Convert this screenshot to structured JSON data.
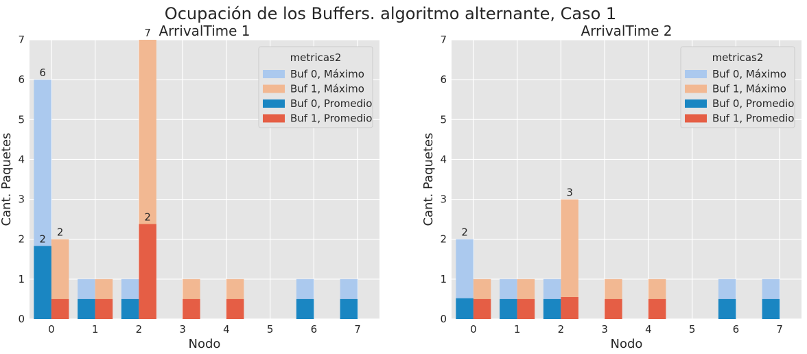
{
  "figure": {
    "title": "Ocupación de los Buffers. algoritmo alternante, Caso 1"
  },
  "colors": {
    "buf0_max": "#abc9ee",
    "buf1_max": "#f2b892",
    "buf0_prom": "#1a86c2",
    "buf1_prom": "#e55e45",
    "plot_bg": "#e5e5e5",
    "grid": "#ffffff"
  },
  "chart_data": [
    {
      "type": "bar",
      "title": "ArrivalTime 1",
      "xlabel": "Nodo",
      "ylabel": "Cant. Paquetes",
      "categories": [
        "0",
        "1",
        "2",
        "3",
        "4",
        "5",
        "6",
        "7"
      ],
      "ylim": [
        0,
        7
      ],
      "yticks": [
        "0",
        "1",
        "2",
        "3",
        "4",
        "5",
        "6",
        "7"
      ],
      "grid": true,
      "legend": {
        "title": "metricas2",
        "placement": "top-right",
        "entries": [
          "Buf 0, Máximo",
          "Buf 1, Máximo",
          "Buf 0, Promedio",
          "Buf 1, Promedio"
        ]
      },
      "series": [
        {
          "name": "Buf 0, Máximo",
          "values": [
            6,
            1,
            1,
            0,
            0,
            0,
            1,
            1
          ]
        },
        {
          "name": "Buf 1, Máximo",
          "values": [
            2,
            1,
            7,
            1,
            1,
            0,
            0,
            0
          ]
        },
        {
          "name": "Buf 0, Promedio",
          "values": [
            1.83,
            0.5,
            0.5,
            0,
            0,
            0,
            0.5,
            0.5
          ]
        },
        {
          "name": "Buf 1, Promedio",
          "values": [
            0.5,
            0.5,
            2.38,
            0.5,
            0.5,
            0,
            0,
            0
          ]
        }
      ],
      "bar_labels": [
        {
          "text": "6",
          "category": 0,
          "slot": 0,
          "value": 6
        },
        {
          "text": "2",
          "category": 0,
          "slot": 0,
          "value": 1.83
        },
        {
          "text": "2",
          "category": 0,
          "slot": 1,
          "value": 2
        },
        {
          "text": "7",
          "category": 2,
          "slot": 1,
          "value": 7
        },
        {
          "text": "2",
          "category": 2,
          "slot": 1,
          "value": 2.38
        }
      ]
    },
    {
      "type": "bar",
      "title": "ArrivalTime 2",
      "xlabel": "Nodo",
      "ylabel": "Cant. Paquetes",
      "categories": [
        "0",
        "1",
        "2",
        "3",
        "4",
        "5",
        "6",
        "7"
      ],
      "ylim": [
        0,
        7
      ],
      "yticks": [
        "0",
        "1",
        "2",
        "3",
        "4",
        "5",
        "6",
        "7"
      ],
      "grid": true,
      "legend": {
        "title": "metricas2",
        "placement": "top-right",
        "entries": [
          "Buf 0, Máximo",
          "Buf 1, Máximo",
          "Buf 0, Promedio",
          "Buf 1, Promedio"
        ]
      },
      "series": [
        {
          "name": "Buf 0, Máximo",
          "values": [
            2,
            1,
            1,
            0,
            0,
            0,
            1,
            1
          ]
        },
        {
          "name": "Buf 1, Máximo",
          "values": [
            1,
            1,
            3,
            1,
            1,
            0,
            0,
            0
          ]
        },
        {
          "name": "Buf 0, Promedio",
          "values": [
            0.52,
            0.5,
            0.5,
            0,
            0,
            0,
            0.5,
            0.5
          ]
        },
        {
          "name": "Buf 1, Promedio",
          "values": [
            0.5,
            0.5,
            0.55,
            0.5,
            0.5,
            0,
            0,
            0
          ]
        }
      ],
      "bar_labels": [
        {
          "text": "2",
          "category": 0,
          "slot": 0,
          "value": 2
        },
        {
          "text": "3",
          "category": 2,
          "slot": 1,
          "value": 3
        }
      ]
    }
  ]
}
